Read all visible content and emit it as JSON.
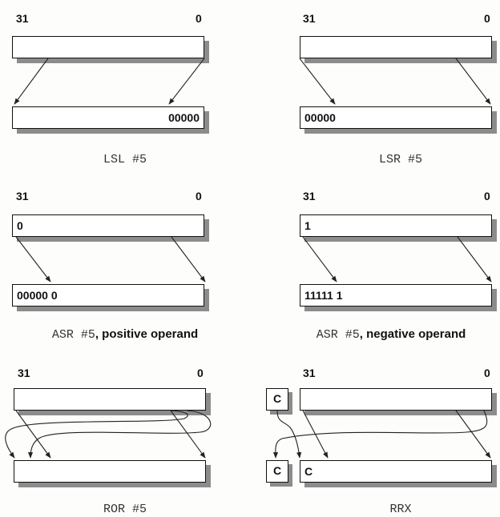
{
  "diagrams": {
    "lsl": {
      "bit_high": "31",
      "bit_low": "0",
      "src": "",
      "dst": "00000",
      "caption_code": "LSL #5",
      "caption_suffix": ""
    },
    "lsr": {
      "bit_high": "31",
      "bit_low": "0",
      "src": "",
      "dst": "00000",
      "caption_code": "LSR #5",
      "caption_suffix": ""
    },
    "asr_pos": {
      "bit_high": "31",
      "bit_low": "0",
      "src": "0",
      "dst": "00000 0",
      "caption_code": "ASR #5",
      "caption_suffix": ", positive operand"
    },
    "asr_neg": {
      "bit_high": "31",
      "bit_low": "0",
      "src": "1",
      "dst": "11111 1",
      "caption_code": "ASR #5",
      "caption_suffix": ", negative operand"
    },
    "ror": {
      "bit_high": "31",
      "bit_low": "0",
      "src": "",
      "dst": "",
      "caption_code": "ROR #5",
      "caption_suffix": ""
    },
    "rrx": {
      "bit_high": "31",
      "bit_low": "0",
      "src": "",
      "dst": "C",
      "carry_in": "C",
      "carry_out": "C",
      "caption_code": "RRX",
      "caption_suffix": ""
    }
  }
}
